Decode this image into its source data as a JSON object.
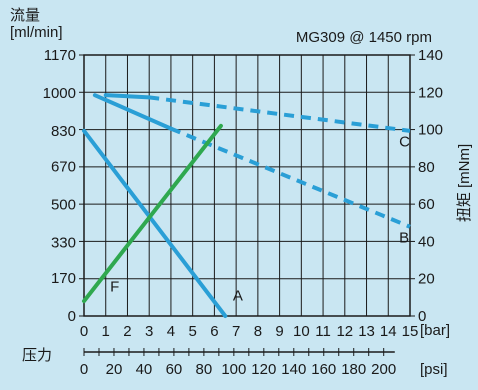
{
  "chart_data": {
    "type": "line",
    "title": "MG309 @ 1450 rpm",
    "y_left_label": [
      "流量",
      "[ml/min]"
    ],
    "y_right_label": "扭矩 [mNm]",
    "x_label_bar": "[bar]",
    "x_label_psi": "[psi]",
    "x_secondary_title": "压力",
    "x_bar_ticks": [
      "0",
      "1",
      "2",
      "3",
      "4",
      "5",
      "6",
      "7",
      "8",
      "9",
      "10",
      "11",
      "12",
      "13",
      "14",
      "15"
    ],
    "x_psi_ticks": [
      "0",
      "20",
      "40",
      "60",
      "80",
      "100",
      "120",
      "140",
      "160",
      "180",
      "200"
    ],
    "y_left_ticks": [
      "0",
      "170",
      "330",
      "500",
      "670",
      "830",
      "1000",
      "1170"
    ],
    "y_right_ticks": [
      "0",
      "20",
      "40",
      "60",
      "80",
      "100",
      "120",
      "140"
    ],
    "xlim_bar": [
      0,
      15
    ],
    "ylim_left": [
      0,
      1170
    ],
    "ylim_right": [
      0,
      140
    ],
    "grid": true,
    "colors": {
      "flow": "#2a9fd6",
      "torque": "#2a9fd6",
      "torque_line_F": "#2fa84f",
      "grid": "#1a1a1a"
    },
    "series": [
      {
        "name": "A",
        "axis": "left",
        "style": "solid",
        "color": "#2a9fd6",
        "x": [
          0,
          6.5
        ],
        "y": [
          830,
          0
        ]
      },
      {
        "name": "B",
        "axis": "left",
        "style": "segmented",
        "color": "#2a9fd6",
        "x": [
          0.5,
          4.0,
          15.0
        ],
        "y": [
          990,
          840,
          400
        ]
      },
      {
        "name": "C",
        "axis": "left",
        "style": "segmented",
        "color": "#2a9fd6",
        "x": [
          1.0,
          3.0,
          15.0
        ],
        "y": [
          990,
          980,
          830
        ]
      },
      {
        "name": "F",
        "axis": "right",
        "style": "solid",
        "color": "#2fa84f",
        "x": [
          0,
          6.3
        ],
        "y": [
          8,
          102
        ]
      }
    ],
    "series_labels": [
      {
        "name": "A",
        "x": 6.85,
        "y": 70
      },
      {
        "name": "B",
        "x": 14.5,
        "y": 330
      },
      {
        "name": "C",
        "x": 14.5,
        "y": 760
      },
      {
        "name": "F",
        "x": 1.2,
        "y": 110
      }
    ]
  }
}
